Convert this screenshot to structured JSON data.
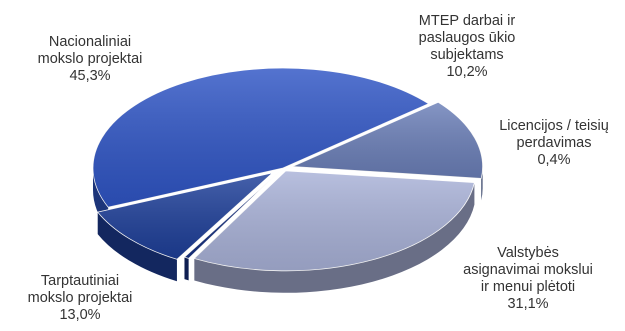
{
  "chart_data": {
    "type": "pie",
    "title": "",
    "slices": [
      {
        "name_lines": [
          "Nacionaliniai",
          "mokslo projektai"
        ],
        "value": 45.3,
        "label": "45,3%",
        "color": "#2f55c5"
      },
      {
        "name_lines": [
          "MTEP darbai ir",
          "paslaugos ūkio",
          "subjektams"
        ],
        "value": 10.2,
        "label": "10,2%",
        "color": "#1e3f99"
      },
      {
        "name_lines": [
          "Licencijos / teisių",
          "perdavimas"
        ],
        "value": 0.4,
        "label": "0,4%",
        "color": "#173182"
      },
      {
        "name_lines": [
          "Valstybės",
          "asignavimai mokslui",
          "ir menui plėtoti"
        ],
        "value": 31.1,
        "label": "31,1%",
        "color": "#a9b2d8"
      },
      {
        "name_lines": [
          "Tarptautiniai",
          "mokslo projektai"
        ],
        "value": 13.0,
        "label": "13,0%",
        "color": "#6b7fb8"
      }
    ]
  }
}
